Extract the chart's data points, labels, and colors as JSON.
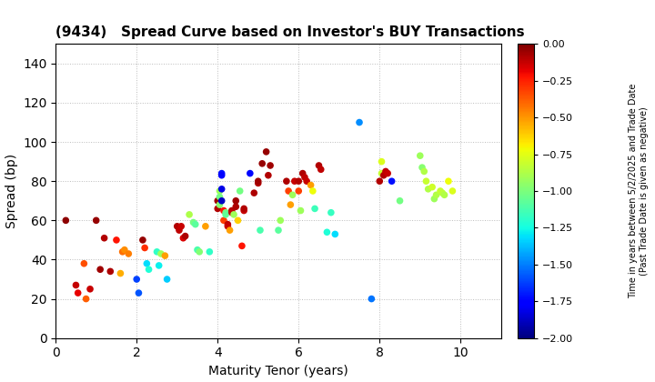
{
  "title": "(9434)   Spread Curve based on Investor's BUY Transactions",
  "xlabel": "Maturity Tenor (years)",
  "ylabel": "Spread (bp)",
  "colorbar_label": "Time in years between 5/2/2025 and Trade Date\n(Past Trade Date is given as negative)",
  "clim": [
    -2.0,
    0.0
  ],
  "xlim": [
    0,
    11
  ],
  "ylim": [
    0,
    150
  ],
  "xticks": [
    0,
    2,
    4,
    6,
    8,
    10
  ],
  "yticks": [
    0,
    20,
    40,
    60,
    80,
    100,
    120,
    140
  ],
  "colorbar_ticks": [
    0.0,
    -0.25,
    -0.5,
    -0.75,
    -1.0,
    -1.25,
    -1.5,
    -1.75,
    -2.0
  ],
  "points": [
    [
      0.25,
      60,
      -0.03
    ],
    [
      0.5,
      27,
      -0.12
    ],
    [
      0.55,
      23,
      -0.18
    ],
    [
      0.7,
      38,
      -0.35
    ],
    [
      0.75,
      20,
      -0.38
    ],
    [
      0.85,
      25,
      -0.13
    ],
    [
      1.0,
      60,
      -0.04
    ],
    [
      1.1,
      35,
      -0.06
    ],
    [
      1.2,
      51,
      -0.09
    ],
    [
      1.35,
      34,
      -0.08
    ],
    [
      1.5,
      50,
      -0.22
    ],
    [
      1.6,
      33,
      -0.55
    ],
    [
      1.65,
      44,
      -0.42
    ],
    [
      1.7,
      45,
      -0.48
    ],
    [
      1.8,
      43,
      -0.45
    ],
    [
      2.0,
      30,
      -1.62
    ],
    [
      2.05,
      23,
      -1.58
    ],
    [
      2.15,
      50,
      -0.04
    ],
    [
      2.2,
      46,
      -0.28
    ],
    [
      2.25,
      38,
      -1.32
    ],
    [
      2.3,
      35,
      -1.22
    ],
    [
      2.5,
      44,
      -1.18
    ],
    [
      2.55,
      37,
      -1.28
    ],
    [
      2.6,
      43,
      -0.92
    ],
    [
      2.7,
      42,
      -0.52
    ],
    [
      2.75,
      30,
      -1.35
    ],
    [
      3.0,
      57,
      -0.09
    ],
    [
      3.05,
      55,
      -0.11
    ],
    [
      3.1,
      57,
      -0.13
    ],
    [
      3.15,
      51,
      -0.16
    ],
    [
      3.2,
      52,
      -0.08
    ],
    [
      3.3,
      63,
      -0.88
    ],
    [
      3.4,
      59,
      -1.02
    ],
    [
      3.45,
      58,
      -1.08
    ],
    [
      3.5,
      45,
      -1.12
    ],
    [
      3.55,
      44,
      -0.98
    ],
    [
      3.7,
      57,
      -0.52
    ],
    [
      3.8,
      44,
      -1.18
    ],
    [
      4.0,
      70,
      -0.06
    ],
    [
      4.0,
      66,
      -0.09
    ],
    [
      4.05,
      75,
      -0.92
    ],
    [
      4.05,
      68,
      -0.97
    ],
    [
      4.05,
      72,
      -1.02
    ],
    [
      4.1,
      84,
      -1.72
    ],
    [
      4.1,
      83,
      -1.78
    ],
    [
      4.1,
      76,
      -1.82
    ],
    [
      4.1,
      70,
      -1.88
    ],
    [
      4.15,
      65,
      -0.22
    ],
    [
      4.15,
      60,
      -0.32
    ],
    [
      4.2,
      64,
      -1.02
    ],
    [
      4.2,
      63,
      -1.07
    ],
    [
      4.25,
      58,
      -0.11
    ],
    [
      4.25,
      57,
      -0.13
    ],
    [
      4.3,
      55,
      -0.52
    ],
    [
      4.35,
      65,
      -0.09
    ],
    [
      4.35,
      64,
      -0.11
    ],
    [
      4.4,
      63,
      -0.92
    ],
    [
      4.45,
      70,
      -0.06
    ],
    [
      4.45,
      67,
      -0.08
    ],
    [
      4.5,
      60,
      -0.62
    ],
    [
      4.55,
      75,
      -1.02
    ],
    [
      4.6,
      47,
      -0.22
    ],
    [
      4.65,
      65,
      -0.13
    ],
    [
      4.65,
      66,
      -0.09
    ],
    [
      4.8,
      84,
      -1.74
    ],
    [
      4.9,
      74,
      -0.08
    ],
    [
      5.0,
      79,
      -0.09
    ],
    [
      5.0,
      80,
      -0.06
    ],
    [
      5.05,
      55,
      -1.12
    ],
    [
      5.1,
      89,
      -0.04
    ],
    [
      5.2,
      95,
      -0.04
    ],
    [
      5.25,
      83,
      -0.09
    ],
    [
      5.3,
      88,
      -0.06
    ],
    [
      5.5,
      55,
      -1.08
    ],
    [
      5.55,
      60,
      -0.92
    ],
    [
      5.7,
      80,
      -0.08
    ],
    [
      5.75,
      75,
      -0.32
    ],
    [
      5.8,
      68,
      -0.52
    ],
    [
      5.85,
      73,
      -0.92
    ],
    [
      5.9,
      80,
      -0.13
    ],
    [
      6.0,
      80,
      -0.09
    ],
    [
      6.0,
      75,
      -0.32
    ],
    [
      6.05,
      65,
      -0.92
    ],
    [
      6.1,
      84,
      -0.08
    ],
    [
      6.15,
      82,
      -0.11
    ],
    [
      6.2,
      80,
      -0.13
    ],
    [
      6.3,
      78,
      -0.52
    ],
    [
      6.35,
      75,
      -0.72
    ],
    [
      6.4,
      66,
      -1.15
    ],
    [
      6.5,
      88,
      -0.09
    ],
    [
      6.55,
      86,
      -0.11
    ],
    [
      6.7,
      54,
      -1.22
    ],
    [
      6.8,
      64,
      -1.17
    ],
    [
      6.9,
      53,
      -1.32
    ],
    [
      7.5,
      110,
      -1.47
    ],
    [
      7.8,
      20,
      -1.52
    ],
    [
      8.0,
      80,
      -0.09
    ],
    [
      8.05,
      90,
      -0.77
    ],
    [
      8.05,
      84,
      -0.82
    ],
    [
      8.1,
      83,
      -0.09
    ],
    [
      8.15,
      85,
      -0.11
    ],
    [
      8.2,
      84,
      -0.13
    ],
    [
      8.3,
      80,
      -1.72
    ],
    [
      8.5,
      70,
      -1.02
    ],
    [
      9.0,
      93,
      -0.92
    ],
    [
      9.05,
      87,
      -0.97
    ],
    [
      9.1,
      85,
      -0.87
    ],
    [
      9.15,
      80,
      -0.82
    ],
    [
      9.2,
      76,
      -0.87
    ],
    [
      9.3,
      77,
      -0.8
    ],
    [
      9.35,
      71,
      -0.92
    ],
    [
      9.4,
      73,
      -0.87
    ],
    [
      9.5,
      75,
      -0.82
    ],
    [
      9.55,
      74,
      -0.84
    ],
    [
      9.6,
      73,
      -0.87
    ],
    [
      9.7,
      80,
      -0.72
    ],
    [
      9.8,
      75,
      -0.77
    ]
  ],
  "marker_size": 30,
  "cmap": "jet",
  "grid_color": "#bbbbbb",
  "grid_linestyle": ":",
  "bg_color": "white"
}
